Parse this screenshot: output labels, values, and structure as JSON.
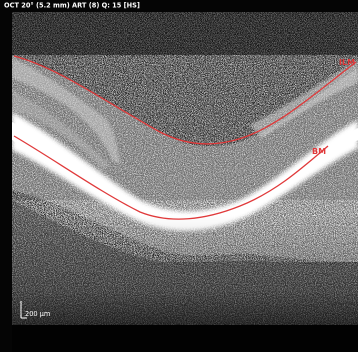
{
  "header": {
    "text": "OCT 20° (5.2 mm) ART (8) Q: 15 [HS]"
  },
  "segmentation": {
    "ilm_label": "ILM",
    "bm_label": "BM",
    "line_color": "#e0393a"
  },
  "scale_bar": {
    "label": "200 µm"
  }
}
